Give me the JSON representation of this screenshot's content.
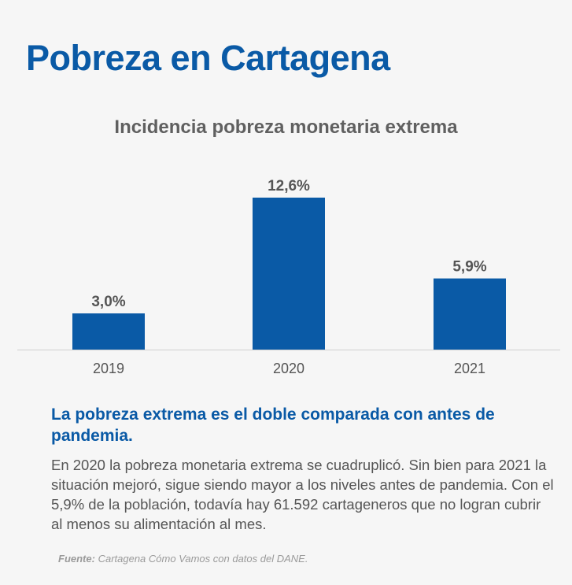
{
  "header": {
    "title": "Pobreza en Cartagena"
  },
  "chart_data": {
    "type": "bar",
    "title": "Incidencia pobreza monetaria extrema",
    "categories": [
      "2019",
      "2020",
      "2021"
    ],
    "values": [
      3.0,
      12.6,
      5.9
    ],
    "value_labels": [
      "3,0%",
      "12,6%",
      "5,9%"
    ],
    "unit": "%",
    "bar_color": "#0a5aa6",
    "label_color": "#555555",
    "grid": false,
    "legend": "none"
  },
  "summary": {
    "headline": "La pobreza extrema es el doble comparada con antes de pandemia.",
    "body": "En 2020 la pobreza monetaria extrema se cuadruplicó. Sin bien para 2021 la situación mejoró, sigue siendo mayor a los niveles antes de pandemia. Con el 5,9% de la población, todavía hay 61.592 cartageneros que no logran cubrir al menos su alimentación al mes."
  },
  "source": {
    "label": "Fuente:",
    "text": "Cartagena Cómo Vamos con datos del DANE."
  },
  "colors": {
    "brand": "#0a5aa6",
    "text": "#555555",
    "background": "#f6f6f6"
  }
}
